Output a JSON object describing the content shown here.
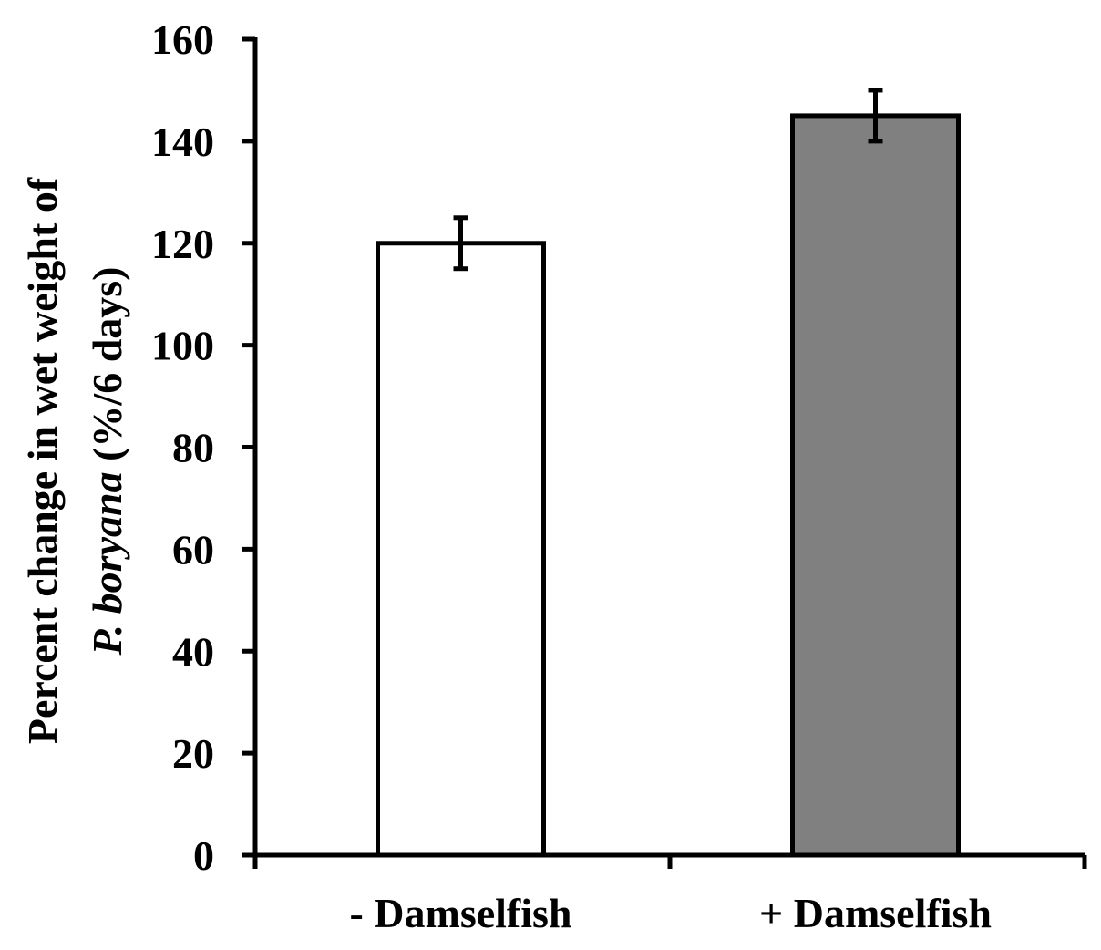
{
  "chart_data": {
    "type": "bar",
    "categories": [
      "- Damselfish",
      "+ Damselfish"
    ],
    "values": [
      120,
      145
    ],
    "error": [
      5,
      5
    ],
    "bar_colors": [
      "#ffffff",
      "#808080"
    ],
    "ylabel_line1": "Percent change in wet weight of",
    "ylabel_line2_italic": "P. boryana",
    "ylabel_line2_rest": " (%/6 days)",
    "ylim": [
      0,
      160
    ],
    "yticks": [
      0,
      20,
      40,
      60,
      80,
      100,
      120,
      140,
      160
    ],
    "grid": false,
    "legend": "none"
  }
}
